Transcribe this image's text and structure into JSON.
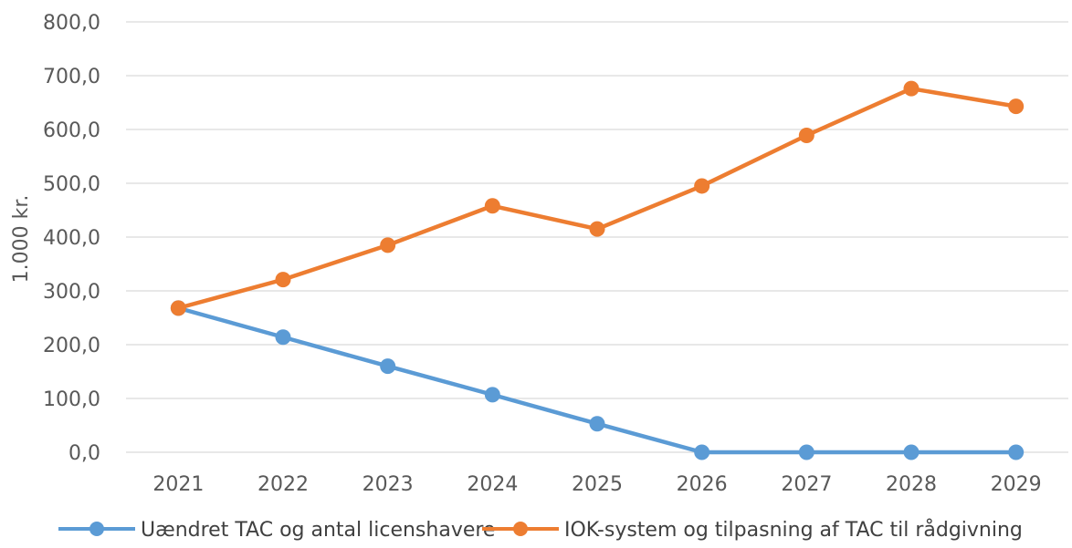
{
  "chart_data": {
    "type": "line",
    "categories": [
      "2021",
      "2022",
      "2023",
      "2024",
      "2025",
      "2026",
      "2027",
      "2028",
      "2029"
    ],
    "series": [
      {
        "name": "Uændret TAC og antal licenshavere",
        "color": "#5B9BD5",
        "values": [
          268,
          214,
          160,
          107,
          53,
          0,
          0,
          0,
          0
        ]
      },
      {
        "name": "IOK-system og tilpasning af TAC til rådgivning",
        "color": "#ED7D31",
        "values": [
          268,
          321,
          385,
          458,
          415,
          495,
          589,
          676,
          643
        ]
      }
    ],
    "ylabel": "1.000 kr.",
    "ylim": [
      0,
      800
    ],
    "yticks": [
      "0,0",
      "100,0",
      "200,0",
      "300,0",
      "400,0",
      "500,0",
      "600,0",
      "700,0",
      "800,0"
    ],
    "grid": true,
    "legend_position": "bottom"
  }
}
